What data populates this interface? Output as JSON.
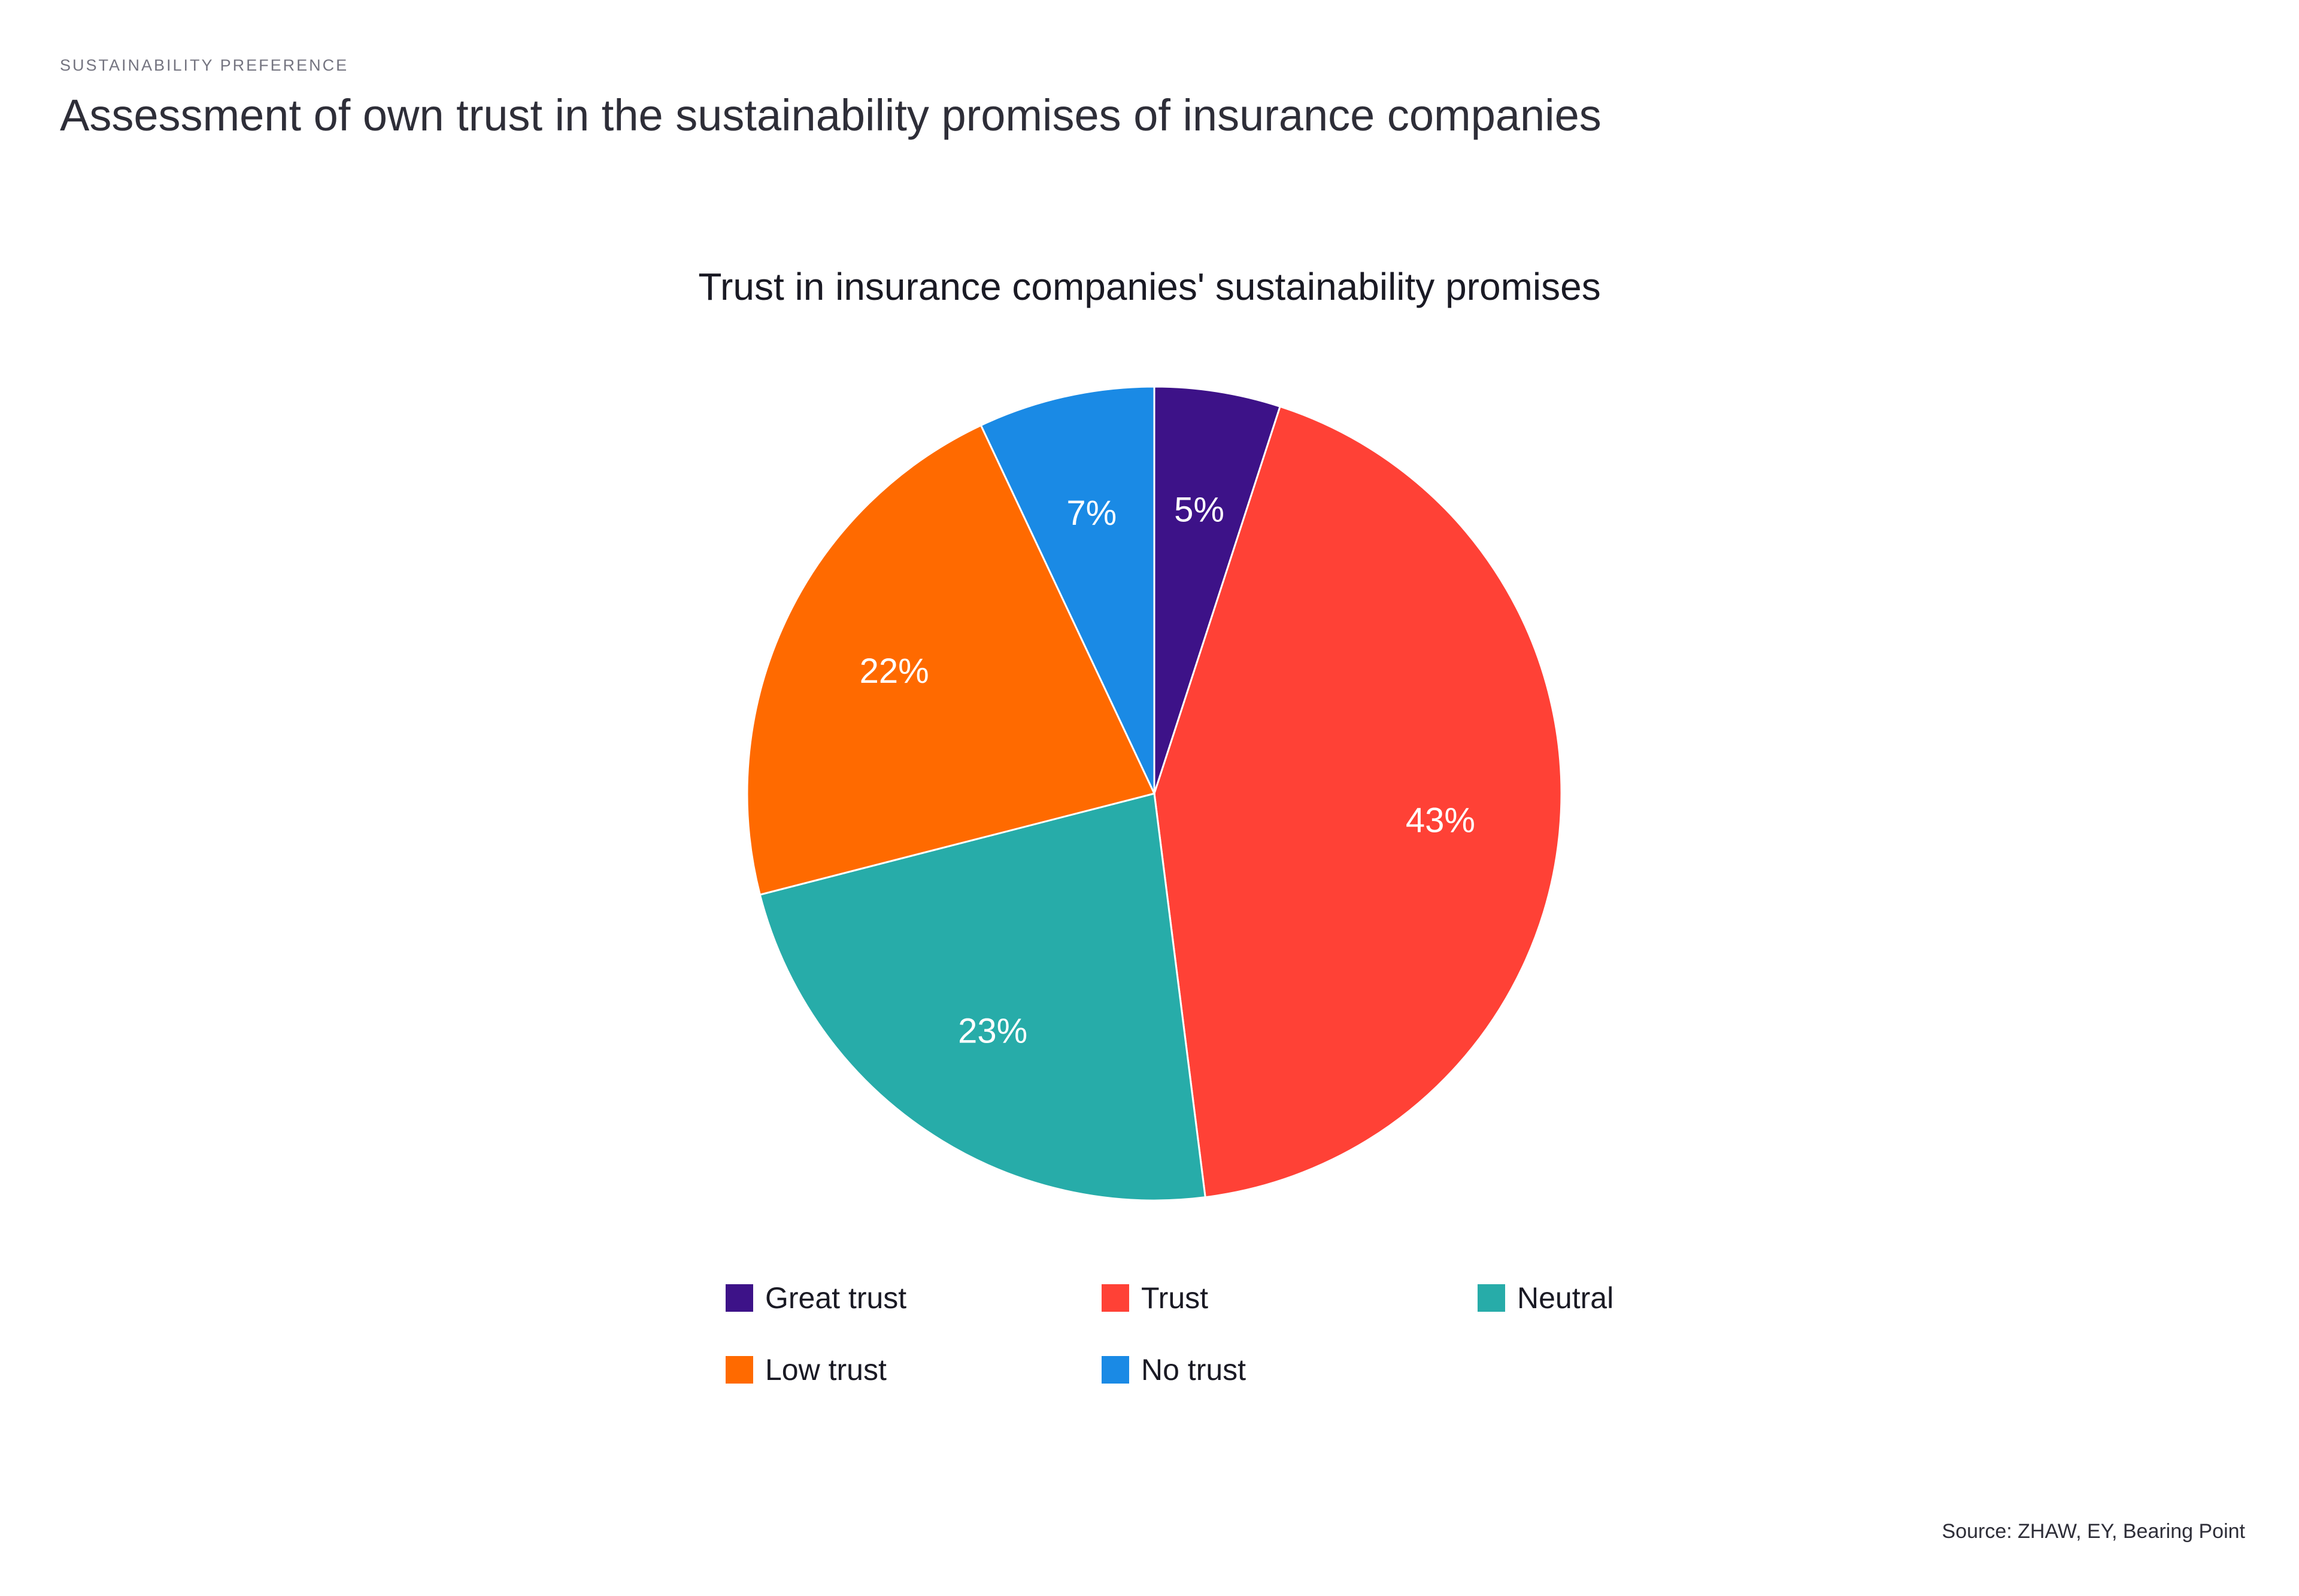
{
  "header": {
    "eyebrow": "SUSTAINABILITY PREFERENCE",
    "title": "Assessment of own trust in the sustainability promises of insurance companies"
  },
  "chart_data": {
    "type": "pie",
    "title": "Trust in insurance companies' sustainability promises",
    "categories": [
      "Great trust",
      "Trust",
      "Neutral",
      "Low trust",
      "No trust"
    ],
    "values": [
      5,
      43,
      23,
      22,
      7
    ],
    "labels": [
      "5%",
      "43%",
      "23%",
      "22%",
      "7%"
    ],
    "colors": [
      "#3d1288",
      "#ff4136",
      "#27aca9",
      "#ff6a00",
      "#1a8ae5"
    ],
    "start_angle": "12 o'clock",
    "direction": "clockwise",
    "legend_position": "bottom"
  },
  "source": "Source: ZHAW, EY, Bearing Point"
}
